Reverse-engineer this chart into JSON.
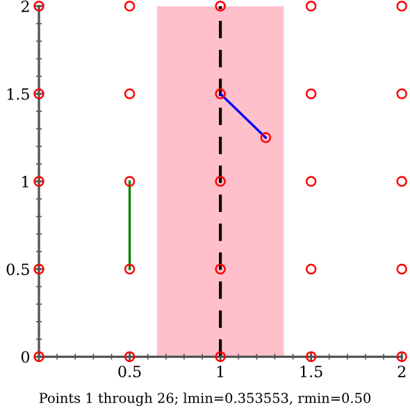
{
  "chart_data": {
    "type": "scatter",
    "series": [
      {
        "color": "#ff0000",
        "marker": "circle",
        "x": [
          0,
          0,
          0,
          0,
          0,
          0.5,
          0.5,
          0.5,
          0.5,
          0.5,
          1,
          1,
          1,
          1,
          1,
          1.5,
          1.5,
          1.5,
          1.5,
          1.5,
          2,
          2,
          2,
          2,
          2,
          1.25
        ],
        "values": [
          0,
          0.5,
          1,
          1.5,
          2,
          0,
          0.5,
          1,
          1.5,
          2,
          0,
          0.5,
          1,
          1.5,
          2,
          0,
          0.5,
          1,
          1.5,
          2,
          0,
          0.5,
          1,
          1.5,
          2,
          1.25
        ]
      },
      {
        "type": "line",
        "color": "#008000",
        "marker": "none",
        "x": [
          0.5,
          0.5
        ],
        "values": [
          0.5,
          1
        ]
      },
      {
        "type": "line",
        "color": "#0000ff",
        "marker": "none",
        "x": [
          1,
          1.25
        ],
        "values": [
          1.5,
          1.25
        ]
      }
    ],
    "xlim": [
      0,
      2
    ],
    "ylim": [
      0,
      2
    ],
    "xticks": [
      {
        "value": 0,
        "label": null
      },
      0.5,
      1,
      1.5,
      2
    ],
    "yticks": [
      0,
      0.5,
      1,
      1.5,
      2
    ],
    "ref_lines": [
      {
        "axis": "x",
        "value": 1,
        "label": null,
        "color": "#000000",
        "line_style": "dashed"
      }
    ],
    "bands": [
      {
        "axis": "x",
        "from": 0.65,
        "to": 1.35,
        "label": null,
        "color": "#ffc0cb"
      }
    ],
    "grid": false,
    "legend": false,
    "annotations": [
      "Points 1 through 26; lmin=0.353553, rmin=0.50"
    ]
  }
}
